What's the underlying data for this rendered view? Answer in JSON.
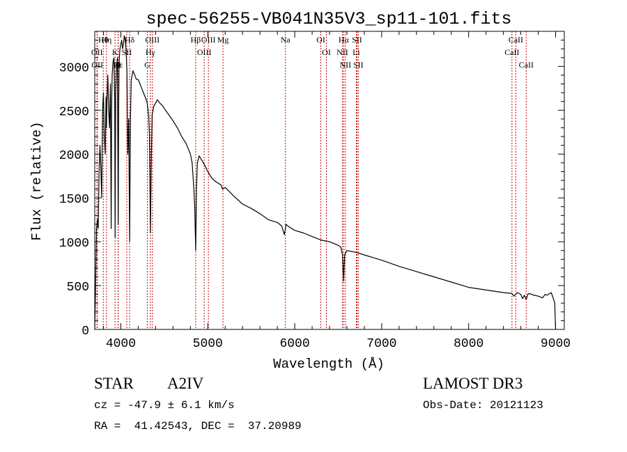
{
  "chart_data": {
    "type": "line",
    "title": "spec-56255-VB041N35V3_sp11-101.fits",
    "xlabel": "Wavelength (Å)",
    "ylabel": "Flux (relative)",
    "xlim": [
      3700,
      9100
    ],
    "ylim": [
      0,
      3400
    ],
    "xticks": [
      4000,
      5000,
      6000,
      7000,
      8000,
      9000
    ],
    "xtick_labels": [
      "4000",
      "5000",
      "6000",
      "7000",
      "8000",
      "9000"
    ],
    "yticks": [
      0,
      500,
      1000,
      1500,
      2000,
      2500,
      3000
    ],
    "ytick_labels": [
      "0",
      "500",
      "1000",
      "1500",
      "2000",
      "2500",
      "3000"
    ],
    "series": [
      {
        "name": "spectrum",
        "color": "#000000",
        "x": [
          3700,
          3710,
          3720,
          3730,
          3740,
          3750,
          3760,
          3770,
          3780,
          3790,
          3800,
          3810,
          3820,
          3830,
          3835,
          3840,
          3850,
          3860,
          3870,
          3880,
          3889,
          3895,
          3900,
          3910,
          3920,
          3930,
          3934,
          3940,
          3950,
          3960,
          3970,
          3975,
          3980,
          3990,
          4000,
          4010,
          4020,
          4030,
          4040,
          4050,
          4060,
          4070,
          4080,
          4090,
          4101,
          4110,
          4120,
          4140,
          4160,
          4180,
          4200,
          4220,
          4240,
          4260,
          4280,
          4300,
          4320,
          4330,
          4340,
          4350,
          4360,
          4380,
          4400,
          4420,
          4450,
          4480,
          4500,
          4550,
          4600,
          4650,
          4700,
          4750,
          4800,
          4820,
          4840,
          4850,
          4861,
          4870,
          4880,
          4900,
          4950,
          5000,
          5050,
          5100,
          5150,
          5170,
          5200,
          5300,
          5400,
          5500,
          5600,
          5700,
          5800,
          5850,
          5880,
          5893,
          5900,
          5920,
          5950,
          6000,
          6100,
          6200,
          6300,
          6400,
          6450,
          6500,
          6530,
          6550,
          6563,
          6575,
          6600,
          6650,
          6700,
          6800,
          6900,
          7000,
          7200,
          7400,
          7600,
          7800,
          8000,
          8200,
          8400,
          8498,
          8520,
          8542,
          8560,
          8600,
          8620,
          8640,
          8662,
          8680,
          8700,
          8750,
          8800,
          8850,
          8880,
          8900,
          8950,
          8990,
          9000
        ],
        "values": [
          0,
          500,
          1150,
          1250,
          1150,
          1800,
          2100,
          1850,
          1500,
          2500,
          2700,
          2200,
          2000,
          2650,
          2300,
          2600,
          2900,
          2500,
          2300,
          2800,
          1150,
          2600,
          2900,
          3050,
          3100,
          2600,
          1050,
          2700,
          2950,
          3100,
          1200,
          2500,
          3050,
          3200,
          3250,
          3300,
          3200,
          3250,
          3350,
          3300,
          3200,
          2950,
          2000,
          2400,
          1000,
          2400,
          2850,
          2950,
          2900,
          2850,
          2850,
          2800,
          2750,
          2700,
          2650,
          2600,
          2450,
          2200,
          1100,
          1900,
          2450,
          2550,
          2580,
          2620,
          2580,
          2550,
          2520,
          2450,
          2380,
          2300,
          2200,
          2120,
          2000,
          1900,
          1600,
          1400,
          900,
          1600,
          1900,
          1980,
          1900,
          1800,
          1720,
          1680,
          1650,
          1600,
          1620,
          1520,
          1430,
          1380,
          1320,
          1250,
          1220,
          1180,
          1080,
          1150,
          1200,
          1180,
          1160,
          1130,
          1100,
          1060,
          1020,
          1000,
          980,
          960,
          940,
          850,
          550,
          850,
          900,
          890,
          880,
          850,
          820,
          790,
          720,
          660,
          600,
          540,
          480,
          450,
          420,
          410,
          380,
          400,
          420,
          400,
          350,
          390,
          340,
          400,
          410,
          390,
          380,
          360,
          400,
          390,
          420,
          300,
          0
        ]
      }
    ],
    "line_color": "#cc0000",
    "line_groups": [
      {
        "labels": [
          "Hθ",
          "OII",
          "OII"
        ],
        "x": [
          3798,
          3726,
          3729
        ]
      },
      {
        "labels": [
          "Hη",
          "K",
          "Hε",
          "H"
        ],
        "x": [
          3835,
          3934,
          3970,
          3968
        ]
      },
      {
        "labels": [
          "Hδ",
          "SII"
        ],
        "x": [
          4101,
          4068
        ]
      },
      {
        "labels": [
          "OIII",
          "Hγ",
          "G"
        ],
        "x": [
          4363,
          4340,
          4305
        ]
      },
      {
        "labels": [
          "Hβ"
        ],
        "x": [
          4861
        ]
      },
      {
        "labels": [
          "OIII",
          "OIII"
        ],
        "x": [
          5007,
          4959
        ]
      },
      {
        "labels": [
          "Mg"
        ],
        "x": [
          5175
        ]
      },
      {
        "labels": [
          "Na"
        ],
        "x": [
          5893
        ]
      },
      {
        "labels": [
          "OI",
          "OI"
        ],
        "x": [
          6300,
          6364
        ]
      },
      {
        "labels": [
          "Hα",
          "NII",
          "NII"
        ],
        "x": [
          6563,
          6548,
          6583
        ]
      },
      {
        "labels": [
          "SII",
          "Li",
          "SII"
        ],
        "x": [
          6716,
          6708,
          6731
        ]
      },
      {
        "labels": [
          "CaII",
          "CaII",
          "CaII"
        ],
        "x": [
          8542,
          8498,
          8662
        ]
      }
    ]
  },
  "info": {
    "object_class": "STAR",
    "subclass": "A2IV",
    "survey": "LAMOST DR3",
    "cz": "cz = -47.9 ± 6.1 km/s",
    "obs_date": "Obs-Date: 20121123",
    "coords": "RA =  41.42543, DEC =  37.20989"
  }
}
